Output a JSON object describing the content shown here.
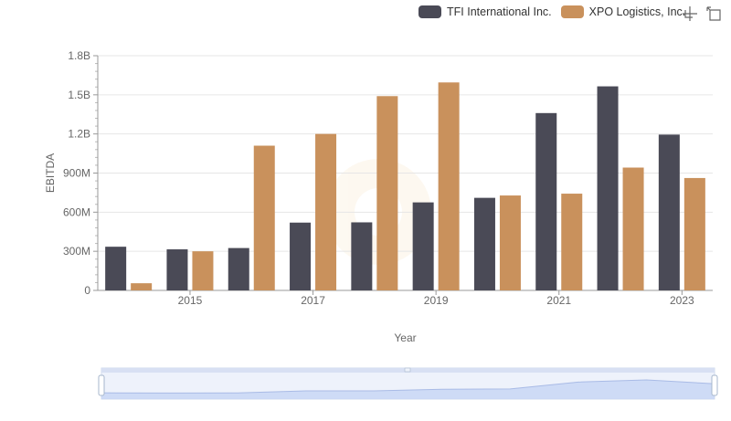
{
  "legend": {
    "items": [
      {
        "label": "TFI International Inc.",
        "color": "#4a4a56"
      },
      {
        "label": "XPO Logistics, Inc.",
        "color": "#c9915c"
      }
    ]
  },
  "toolbox": {
    "icons": [
      "zoom-icon",
      "restore-icon"
    ]
  },
  "chart_data": {
    "type": "bar",
    "title": "",
    "xlabel": "Year",
    "ylabel": "EBITDA",
    "categories": [
      "2014",
      "2015",
      "2016",
      "2017",
      "2018",
      "2019",
      "2020",
      "2021",
      "2022",
      "2023"
    ],
    "x_tick_labels": [
      "2015",
      "2017",
      "2019",
      "2021",
      "2023"
    ],
    "y_tick_labels": [
      "0",
      "300M",
      "600M",
      "900M",
      "1.2B",
      "1.5B",
      "1.8B"
    ],
    "ylim": [
      0,
      1800000000
    ],
    "grid": true,
    "legend_position": "top-right",
    "series": [
      {
        "name": "TFI International Inc.",
        "color": "#4a4a56",
        "values": [
          335000000,
          315000000,
          325000000,
          520000000,
          522000000,
          675000000,
          710000000,
          1360000000,
          1565000000,
          1195000000
        ]
      },
      {
        "name": "XPO Logistics, Inc.",
        "color": "#c9915c",
        "values": [
          55000000,
          300000000,
          1110000000,
          1200000000,
          1490000000,
          1595000000,
          728000000,
          742000000,
          942000000,
          862000000
        ]
      }
    ],
    "data_zoom": {
      "start": 0,
      "end": 100
    }
  }
}
